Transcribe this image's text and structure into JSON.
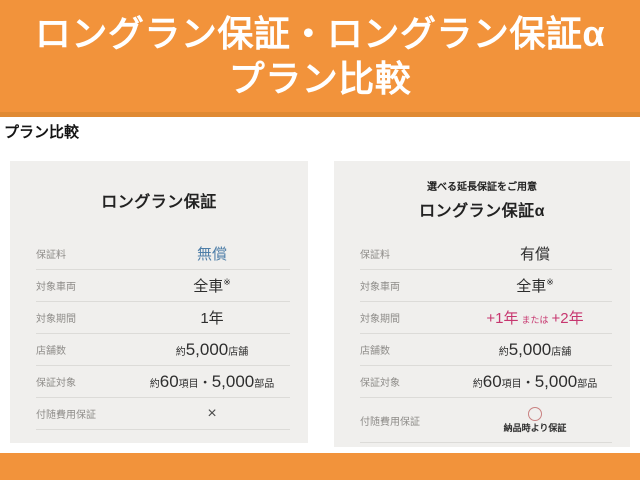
{
  "header": {
    "line1": "ロングラン保証・ロングラン保証α",
    "line2": "プラン比較"
  },
  "section_title": "プラン比較",
  "labels": {
    "fee": "保証料",
    "vehicles": "対象車両",
    "period": "対象期間",
    "shops": "店舗数",
    "coverage": "保証対象",
    "incidental": "付随費用保証"
  },
  "left_plan": {
    "title": "ロングラン保証",
    "fee": "無償",
    "vehicles": "全車",
    "vehicles_note": "※",
    "period": "1年",
    "shops_prefix": "約",
    "shops_value": "5,000",
    "shops_suffix": "店舗",
    "coverage_prefix": "約",
    "coverage_items": "60",
    "coverage_items_suffix": "項目",
    "coverage_sep": "・",
    "coverage_parts": "5,000",
    "coverage_parts_suffix": "部品",
    "incidental_mark": "×"
  },
  "right_plan": {
    "subtitle": "選べる延長保証をご用意",
    "title": "ロングラン保証α",
    "fee": "有償",
    "vehicles": "全車",
    "vehicles_note": "※",
    "period_option1": "+1年",
    "period_conj": "または",
    "period_option2": "+2年",
    "shops_prefix": "約",
    "shops_value": "5,000",
    "shops_suffix": "店舗",
    "coverage_prefix": "約",
    "coverage_items": "60",
    "coverage_items_suffix": "項目",
    "coverage_sep": "・",
    "coverage_parts": "5,000",
    "coverage_parts_suffix": "部品",
    "incidental_note": "納品時より保証"
  },
  "colors": {
    "brand_orange": "#F2933B",
    "card_background": "#F0EFED",
    "free_value_blue": "#4E7EA8",
    "period_accent_pink": "#C7366F",
    "circle_mark_red": "#C98181",
    "label_gray": "#8E8C89"
  }
}
